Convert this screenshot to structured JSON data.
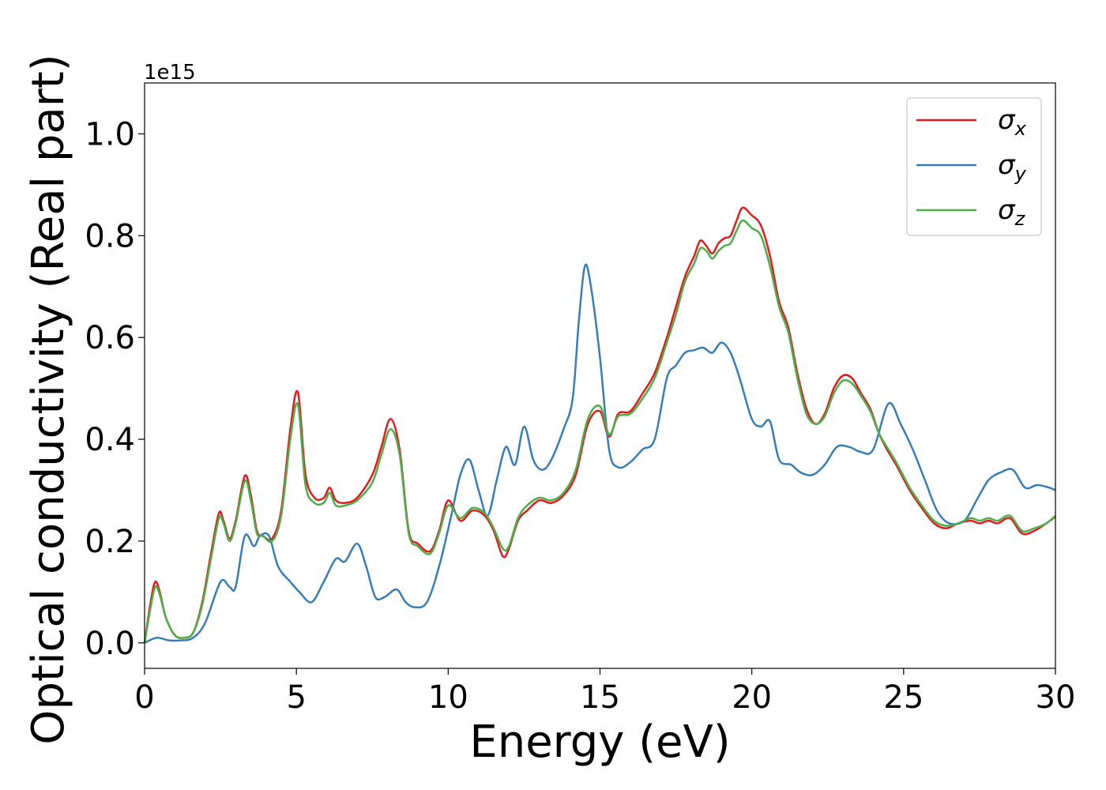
{
  "chart_data": {
    "type": "line",
    "xlabel": "Energy (eV)",
    "ylabel": "Optical conductivity (Real part)",
    "y_offset_label": "1e15",
    "y_scale_factor": 1000000000000000.0,
    "xlim": [
      0,
      30
    ],
    "ylim": [
      -0.05,
      1.1
    ],
    "x_ticks": [
      0,
      5,
      10,
      15,
      20,
      25,
      30
    ],
    "x_tick_labels": [
      "0",
      "5",
      "10",
      "15",
      "20",
      "25",
      "30"
    ],
    "y_ticks": [
      0.0,
      0.2,
      0.4,
      0.6,
      0.8,
      1.0
    ],
    "y_tick_labels": [
      "0.0",
      "0.2",
      "0.4",
      "0.6",
      "0.8",
      "1.0"
    ],
    "grid": false,
    "legend_position": "top-right",
    "series": [
      {
        "name": "σx",
        "legend_symbol": "σ",
        "legend_subscript": "x",
        "color": "#e41a1c",
        "x": [
          0,
          0.2,
          0.35,
          0.5,
          0.7,
          1.0,
          1.3,
          1.6,
          1.9,
          2.2,
          2.45,
          2.6,
          2.8,
          3.0,
          3.3,
          3.5,
          3.7,
          3.9,
          4.2,
          4.5,
          4.8,
          5.05,
          5.3,
          5.6,
          5.9,
          6.1,
          6.3,
          6.6,
          7.0,
          7.5,
          7.8,
          8.1,
          8.4,
          8.7,
          9.0,
          9.4,
          9.7,
          10.0,
          10.4,
          10.8,
          11.2,
          11.5,
          11.8,
          12.0,
          12.3,
          12.6,
          13.0,
          13.4,
          13.8,
          14.2,
          14.6,
          15.0,
          15.3,
          15.6,
          16.0,
          16.4,
          16.8,
          17.2,
          17.5,
          17.8,
          18.1,
          18.3,
          18.5,
          18.7,
          18.9,
          19.1,
          19.3,
          19.5,
          19.7,
          20.0,
          20.3,
          20.6,
          20.9,
          21.2,
          21.5,
          21.8,
          22.1,
          22.4,
          22.7,
          23.0,
          23.3,
          23.6,
          23.9,
          24.2,
          24.5,
          24.8,
          25.2,
          25.6,
          26.0,
          26.4,
          26.8,
          27.2,
          27.5,
          27.8,
          28.1,
          28.5,
          28.9,
          29.3,
          29.7,
          30
        ],
        "y": [
          0.0,
          0.08,
          0.12,
          0.1,
          0.05,
          0.015,
          0.01,
          0.02,
          0.08,
          0.18,
          0.255,
          0.24,
          0.205,
          0.24,
          0.328,
          0.29,
          0.22,
          0.21,
          0.205,
          0.26,
          0.42,
          0.492,
          0.33,
          0.285,
          0.285,
          0.305,
          0.28,
          0.275,
          0.285,
          0.33,
          0.385,
          0.44,
          0.38,
          0.22,
          0.195,
          0.18,
          0.22,
          0.28,
          0.24,
          0.26,
          0.25,
          0.22,
          0.17,
          0.185,
          0.24,
          0.26,
          0.28,
          0.275,
          0.29,
          0.33,
          0.43,
          0.455,
          0.405,
          0.45,
          0.455,
          0.49,
          0.53,
          0.6,
          0.66,
          0.72,
          0.76,
          0.79,
          0.78,
          0.765,
          0.785,
          0.795,
          0.8,
          0.83,
          0.855,
          0.84,
          0.82,
          0.76,
          0.67,
          0.62,
          0.53,
          0.46,
          0.43,
          0.45,
          0.5,
          0.525,
          0.52,
          0.49,
          0.46,
          0.41,
          0.375,
          0.345,
          0.3,
          0.265,
          0.235,
          0.225,
          0.235,
          0.24,
          0.235,
          0.24,
          0.235,
          0.245,
          0.215,
          0.22,
          0.235,
          0.248
        ]
      },
      {
        "name": "σy",
        "legend_symbol": "σ",
        "legend_subscript": "y",
        "color": "#377eb8",
        "x": [
          0,
          0.4,
          0.8,
          1.2,
          1.6,
          2.0,
          2.5,
          2.8,
          3.0,
          3.3,
          3.6,
          3.8,
          4.1,
          4.4,
          4.8,
          5.1,
          5.5,
          5.9,
          6.3,
          6.6,
          7.0,
          7.3,
          7.6,
          7.9,
          8.3,
          8.6,
          8.9,
          9.3,
          9.7,
          10.1,
          10.4,
          10.7,
          11.0,
          11.3,
          11.6,
          11.9,
          12.2,
          12.5,
          12.8,
          13.1,
          13.4,
          13.8,
          14.1,
          14.3,
          14.5,
          14.7,
          15.0,
          15.3,
          15.6,
          16.0,
          16.4,
          16.8,
          17.2,
          17.5,
          17.8,
          18.1,
          18.4,
          18.7,
          19.0,
          19.3,
          19.6,
          20.0,
          20.3,
          20.6,
          20.9,
          21.3,
          21.6,
          22.0,
          22.4,
          22.8,
          23.2,
          23.6,
          24.0,
          24.5,
          24.9,
          25.3,
          25.7,
          26.1,
          26.5,
          27.0,
          27.4,
          27.8,
          28.2,
          28.6,
          29.0,
          29.4,
          29.8,
          30
        ],
        "y": [
          0.0,
          0.01,
          0.005,
          0.005,
          0.01,
          0.04,
          0.12,
          0.11,
          0.11,
          0.21,
          0.19,
          0.21,
          0.21,
          0.15,
          0.12,
          0.1,
          0.08,
          0.12,
          0.165,
          0.16,
          0.195,
          0.15,
          0.09,
          0.09,
          0.105,
          0.08,
          0.07,
          0.08,
          0.15,
          0.25,
          0.33,
          0.36,
          0.3,
          0.25,
          0.32,
          0.385,
          0.35,
          0.425,
          0.36,
          0.34,
          0.36,
          0.42,
          0.48,
          0.63,
          0.74,
          0.7,
          0.56,
          0.38,
          0.345,
          0.355,
          0.38,
          0.4,
          0.52,
          0.545,
          0.57,
          0.575,
          0.58,
          0.57,
          0.59,
          0.57,
          0.52,
          0.44,
          0.425,
          0.435,
          0.36,
          0.35,
          0.335,
          0.33,
          0.35,
          0.385,
          0.385,
          0.375,
          0.38,
          0.47,
          0.43,
          0.38,
          0.32,
          0.26,
          0.235,
          0.24,
          0.28,
          0.32,
          0.335,
          0.34,
          0.305,
          0.31,
          0.305,
          0.3
        ]
      },
      {
        "name": "σz",
        "legend_symbol": "σ",
        "legend_subscript": "z",
        "color": "#4daf4a",
        "x": [
          0,
          0.2,
          0.35,
          0.5,
          0.7,
          1.0,
          1.3,
          1.6,
          1.9,
          2.2,
          2.45,
          2.6,
          2.8,
          3.0,
          3.3,
          3.5,
          3.7,
          3.9,
          4.2,
          4.5,
          4.8,
          5.05,
          5.3,
          5.6,
          5.9,
          6.1,
          6.3,
          6.6,
          7.0,
          7.5,
          7.8,
          8.1,
          8.4,
          8.7,
          9.0,
          9.4,
          9.7,
          10.0,
          10.4,
          10.8,
          11.2,
          11.5,
          11.8,
          12.0,
          12.3,
          12.6,
          13.0,
          13.4,
          13.8,
          14.2,
          14.6,
          15.0,
          15.3,
          15.6,
          16.0,
          16.4,
          16.8,
          17.2,
          17.5,
          17.8,
          18.1,
          18.3,
          18.5,
          18.7,
          18.9,
          19.1,
          19.3,
          19.5,
          19.7,
          20.0,
          20.3,
          20.6,
          20.9,
          21.2,
          21.5,
          21.8,
          22.1,
          22.4,
          22.7,
          23.0,
          23.3,
          23.6,
          23.9,
          24.2,
          24.5,
          24.8,
          25.2,
          25.6,
          26.0,
          26.4,
          26.8,
          27.2,
          27.5,
          27.8,
          28.1,
          28.5,
          28.9,
          29.3,
          29.7,
          30
        ],
        "y": [
          0.0,
          0.07,
          0.11,
          0.095,
          0.05,
          0.015,
          0.01,
          0.02,
          0.075,
          0.17,
          0.245,
          0.235,
          0.2,
          0.235,
          0.318,
          0.28,
          0.215,
          0.21,
          0.2,
          0.25,
          0.4,
          0.468,
          0.31,
          0.275,
          0.275,
          0.295,
          0.27,
          0.27,
          0.28,
          0.315,
          0.37,
          0.42,
          0.37,
          0.215,
          0.19,
          0.175,
          0.215,
          0.27,
          0.245,
          0.265,
          0.255,
          0.225,
          0.185,
          0.19,
          0.245,
          0.27,
          0.285,
          0.28,
          0.295,
          0.34,
          0.44,
          0.465,
          0.41,
          0.445,
          0.45,
          0.48,
          0.52,
          0.59,
          0.645,
          0.71,
          0.745,
          0.775,
          0.77,
          0.755,
          0.77,
          0.78,
          0.785,
          0.81,
          0.83,
          0.815,
          0.8,
          0.74,
          0.66,
          0.61,
          0.52,
          0.45,
          0.43,
          0.445,
          0.49,
          0.515,
          0.51,
          0.485,
          0.455,
          0.41,
          0.38,
          0.35,
          0.305,
          0.27,
          0.24,
          0.23,
          0.235,
          0.245,
          0.24,
          0.245,
          0.24,
          0.25,
          0.22,
          0.225,
          0.235,
          0.25
        ]
      }
    ]
  }
}
